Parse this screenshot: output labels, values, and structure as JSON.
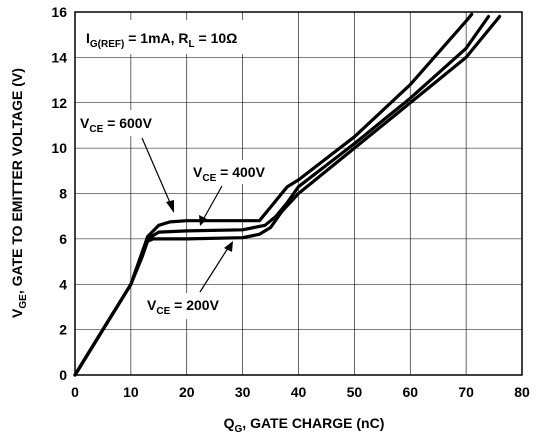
{
  "chart_data": {
    "type": "line",
    "xlabel": {
      "main": "Q",
      "sub": "G",
      "rest": ", GATE CHARGE (nC)"
    },
    "ylabel": {
      "main": "V",
      "sub": "GE",
      "rest": ", GATE TO EMITTER VOLTAGE (V)"
    },
    "xlim": [
      0,
      80
    ],
    "ylim": [
      0,
      16
    ],
    "x_ticks": [
      0,
      10,
      20,
      30,
      40,
      50,
      60,
      70,
      80
    ],
    "y_ticks": [
      0,
      2,
      4,
      6,
      8,
      10,
      12,
      14,
      16
    ],
    "grid": true,
    "condition_label": {
      "p1": "I",
      "p1sub": "G(REF)",
      "p2": " = 1mA, R",
      "p2sub": "L",
      "p3": " = 10Ω"
    },
    "series": [
      {
        "name": "V_CE = 200V",
        "points": [
          [
            0,
            0
          ],
          [
            5,
            2
          ],
          [
            10,
            4
          ],
          [
            12,
            5.2
          ],
          [
            13,
            5.9
          ],
          [
            14,
            6.0
          ],
          [
            20,
            6.0
          ],
          [
            30,
            6.05
          ],
          [
            33,
            6.2
          ],
          [
            35,
            6.5
          ],
          [
            37,
            7.2
          ],
          [
            40,
            8.0
          ],
          [
            50,
            10.0
          ],
          [
            60,
            12.0
          ],
          [
            70,
            14.0
          ],
          [
            76,
            15.8
          ]
        ]
      },
      {
        "name": "V_CE = 400V",
        "points": [
          [
            0,
            0
          ],
          [
            5,
            2
          ],
          [
            10,
            4
          ],
          [
            12,
            5.4
          ],
          [
            13,
            6.0
          ],
          [
            15,
            6.3
          ],
          [
            20,
            6.35
          ],
          [
            30,
            6.4
          ],
          [
            34,
            6.6
          ],
          [
            36,
            7.0
          ],
          [
            38,
            7.6
          ],
          [
            40,
            8.3
          ],
          [
            50,
            10.2
          ],
          [
            60,
            12.2
          ],
          [
            70,
            14.4
          ],
          [
            74,
            15.8
          ]
        ]
      },
      {
        "name": "V_CE = 600V",
        "points": [
          [
            0,
            0
          ],
          [
            5,
            2
          ],
          [
            10,
            4
          ],
          [
            12,
            5.4
          ],
          [
            13,
            6.1
          ],
          [
            15,
            6.6
          ],
          [
            17,
            6.75
          ],
          [
            20,
            6.8
          ],
          [
            30,
            6.8
          ],
          [
            33,
            6.8
          ],
          [
            35,
            7.4
          ],
          [
            38,
            8.3
          ],
          [
            40,
            8.6
          ],
          [
            50,
            10.5
          ],
          [
            60,
            12.8
          ],
          [
            70,
            15.6
          ],
          [
            71,
            15.9
          ]
        ]
      }
    ],
    "labels": [
      {
        "main": "V",
        "sub": "CE",
        "rest": " = 600V"
      },
      {
        "main": "V",
        "sub": "CE",
        "rest": " = 400V"
      },
      {
        "main": "V",
        "sub": "CE",
        "rest": " = 200V"
      }
    ]
  }
}
